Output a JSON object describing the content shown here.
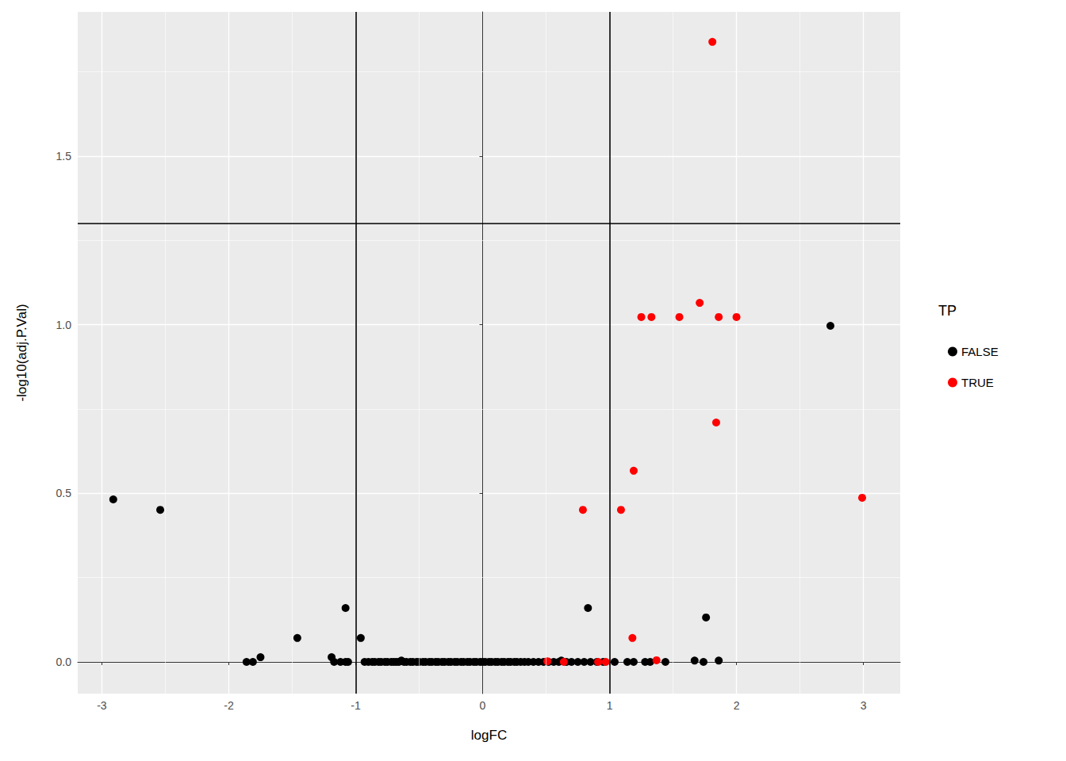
{
  "chart_data": {
    "type": "scatter",
    "x_label": "logFC",
    "y_label": "-log10(adj.P.Val)",
    "legend_title": "TP",
    "legend": "right",
    "grid": true,
    "xlim": [
      -3.19,
      3.29
    ],
    "ylim": [
      -0.094,
      1.928
    ],
    "xticks": [
      -3,
      -2,
      -1,
      0,
      1,
      2,
      3
    ],
    "yticks": [
      {
        "value": 0,
        "label": "0.0"
      },
      0.5,
      {
        "value": 1,
        "label": "1.0"
      },
      1.5
    ],
    "vlines": [
      -1,
      1
    ],
    "hline": 1.3,
    "series": [
      {
        "name": "FALSE",
        "color": "#000000",
        "marker": "circle",
        "x": [
          2.74,
          -2.91,
          -2.54,
          -1.08,
          0.83,
          1.76,
          -1.46,
          -0.96,
          -1.75,
          -1.86,
          -1.81,
          -1.19,
          -1.17,
          -1.12,
          -1.08,
          -1.06,
          -0.93,
          -0.9,
          -0.87,
          -0.85,
          -0.82,
          -0.8,
          -0.77,
          -0.75,
          -0.72,
          -0.7,
          -0.68,
          -0.66,
          -0.64,
          -0.62,
          -0.6,
          -0.57,
          -0.55,
          -0.52,
          -0.5,
          -0.47,
          -0.45,
          -0.42,
          -0.4,
          -0.37,
          -0.35,
          -0.32,
          -0.3,
          -0.27,
          -0.25,
          -0.22,
          -0.2,
          -0.17,
          -0.15,
          -0.12,
          -0.1,
          -0.07,
          -0.05,
          -0.02,
          0,
          0.02,
          0.05,
          0.07,
          0.1,
          0.12,
          0.15,
          0.17,
          0.2,
          0.22,
          0.25,
          0.27,
          0.3,
          0.33,
          0.36,
          0.4,
          0.44,
          0.48,
          0.52,
          0.56,
          0.6,
          0.62,
          0.66,
          0.7,
          0.75,
          0.8,
          0.85,
          0.9,
          0.95,
          1.04,
          1.14,
          1.19,
          1.28,
          1.32,
          1.44,
          1.67,
          1.74,
          1.86
        ],
        "y": [
          0.997,
          0.482,
          0.451,
          0.16,
          0.16,
          0.132,
          0.071,
          0.071,
          0.014,
          0,
          0,
          0.014,
          0,
          0,
          0,
          0,
          0,
          0,
          0,
          0,
          0,
          0,
          0,
          0,
          0,
          0,
          0,
          0,
          0.004,
          0,
          0,
          0,
          0,
          0,
          0,
          0,
          0,
          0,
          0,
          0,
          0,
          0,
          0,
          0,
          0,
          0,
          0,
          0,
          0,
          0,
          0,
          0,
          0,
          0,
          0,
          0,
          0,
          0,
          0,
          0,
          0,
          0,
          0,
          0,
          0,
          0,
          0,
          0,
          0,
          0,
          0,
          0,
          0,
          0,
          0,
          0.004,
          0,
          0,
          0,
          0,
          0,
          0,
          0,
          0,
          0,
          0,
          0,
          0,
          0,
          0.004,
          0,
          0.004
        ]
      },
      {
        "name": "TRUE",
        "color": "#FF0000",
        "marker": "circle",
        "x": [
          1.81,
          1.25,
          1.33,
          1.55,
          1.71,
          1.86,
          2.0,
          1.84,
          1.19,
          0.79,
          1.09,
          2.99,
          1.18,
          0.51,
          0.64,
          0.91,
          0.97,
          1.37
        ],
        "y": [
          1.839,
          1.023,
          1.023,
          1.023,
          1.065,
          1.023,
          1.023,
          0.71,
          0.567,
          0.451,
          0.451,
          0.487,
          0.071,
          0.002,
          0,
          0,
          0,
          0.005
        ]
      }
    ]
  }
}
